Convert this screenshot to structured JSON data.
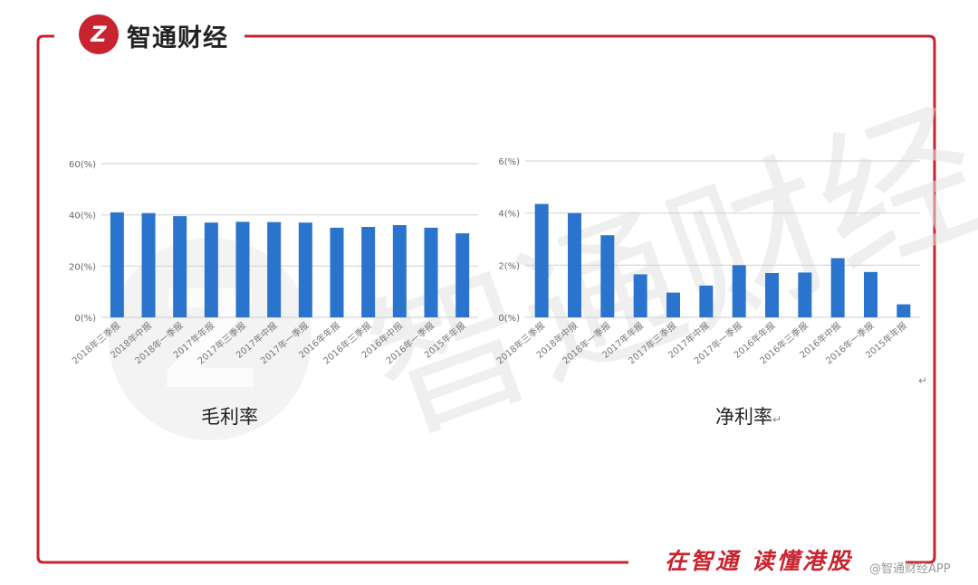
{
  "brand": {
    "name": "智通财经",
    "logo_letter": "Z"
  },
  "footer": {
    "slogan": "在智通  读懂港股",
    "credit": "@智通财经APP"
  },
  "colors": {
    "accent": "#c8242f",
    "bar": "#2a74cd",
    "grid": "#d6d6d6"
  },
  "chart_data": [
    {
      "type": "bar",
      "title": "毛利率",
      "categories": [
        "2018年三季报",
        "2018年中报",
        "2018年一季报",
        "2017年年报",
        "2017年三季报",
        "2017年中报",
        "2017年一季报",
        "2016年年报",
        "2016年三季报",
        "2016年中报",
        "2016年一季报",
        "2015年年报"
      ],
      "values": [
        41,
        40.7,
        39.5,
        37,
        37.3,
        37.2,
        37,
        35,
        35.3,
        36,
        35,
        32.8
      ],
      "ylim": [
        0,
        60
      ],
      "yticks": [
        "0(%)",
        "20(%)",
        "40(%)",
        "60(%)"
      ],
      "grid": true
    },
    {
      "type": "bar",
      "title": "净利率",
      "categories": [
        "2018年三季报",
        "2018年中报",
        "2018年一季报",
        "2017年年报",
        "2017年三季报",
        "2017年中报",
        "2017年一季报",
        "2016年年报",
        "2016年三季报",
        "2016年中报",
        "2016年一季报",
        "2015年年报"
      ],
      "values": [
        4.35,
        4.0,
        3.15,
        1.65,
        0.95,
        1.22,
        2.0,
        1.7,
        1.72,
        2.27,
        1.74,
        0.5
      ],
      "ylim": [
        0,
        6
      ],
      "yticks": [
        "0(%)",
        "2(%)",
        "4(%)",
        "6(%)"
      ],
      "grid": true
    }
  ]
}
